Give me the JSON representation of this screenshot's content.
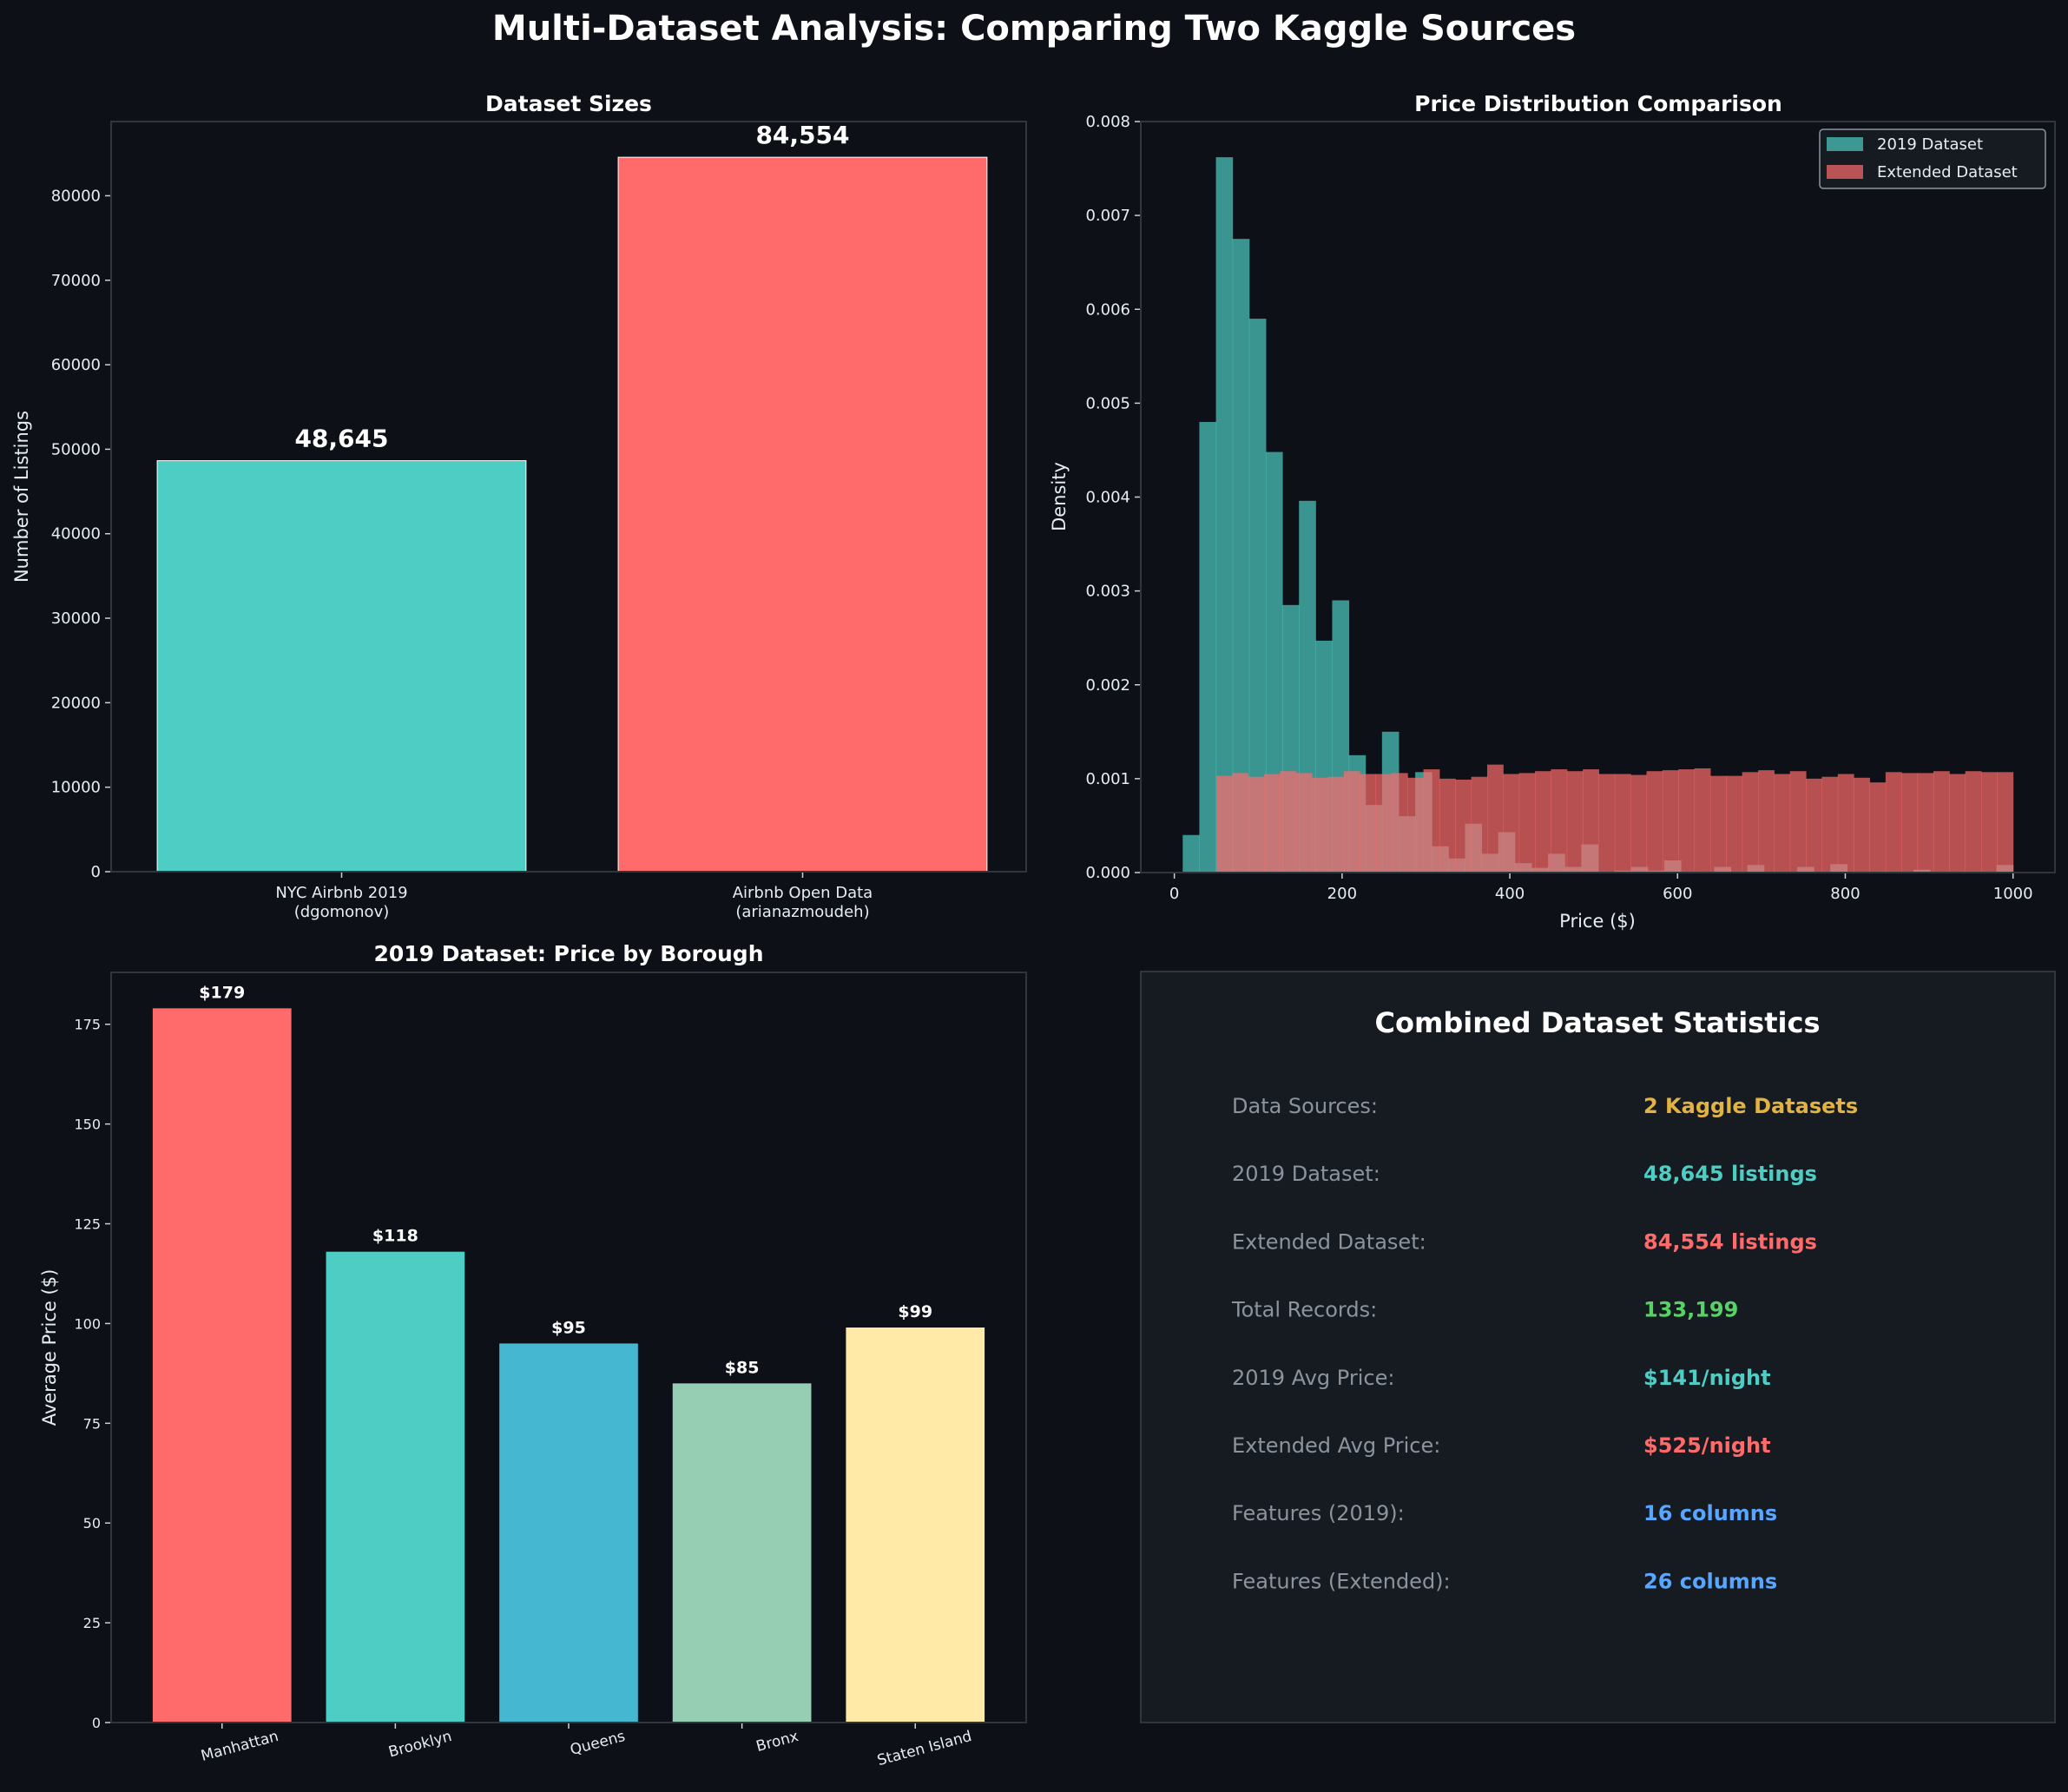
{
  "suptitle": "Multi-Dataset Analysis: Comparing Two Kaggle Sources",
  "colors": {
    "background": "#0d1117",
    "panel": "#161b22",
    "spine": "#30363d",
    "teal": "#4ecdc4",
    "red": "#ff6b6b",
    "blue": "#45b7d1",
    "green": "#96ceb4",
    "yellow": "#ffeaa7",
    "gold": "#e3b341",
    "bright_green": "#56d364",
    "light_blue": "#58a6ff",
    "label_gray": "#8b949e"
  },
  "chart_data": [
    {
      "type": "bar",
      "title": "Dataset Sizes",
      "ylabel": "Number of Listings",
      "categories": [
        [
          "NYC Airbnb 2019",
          "(dgomonov)"
        ],
        [
          "Airbnb Open Data",
          "(arianazmoudeh)"
        ]
      ],
      "values": [
        48645,
        84554
      ],
      "data_labels": [
        "48,645",
        "84,554"
      ],
      "bar_colors": [
        "#4ecdc4",
        "#ff6b6b"
      ],
      "ylim": [
        0,
        88782
      ],
      "yticks": [
        0,
        10000,
        20000,
        30000,
        40000,
        50000,
        60000,
        70000,
        80000
      ]
    },
    {
      "type": "histogram",
      "title": "Price Distribution Comparison",
      "xlabel": "Price ($)",
      "ylabel": "Density",
      "xlim": [
        -40,
        1050
      ],
      "ylim": [
        0,
        0.008
      ],
      "xticks": [
        0,
        200,
        400,
        600,
        800,
        1000
      ],
      "yticks": [
        "0.000",
        "0.001",
        "0.002",
        "0.003",
        "0.004",
        "0.005",
        "0.006",
        "0.007",
        "0.008"
      ],
      "legend": "top-right",
      "series": [
        {
          "name": "2019 Dataset",
          "color": "#4ecdc4",
          "bin_start": 10,
          "bin_end": 1000,
          "densities": [
            0.0004,
            0.0048,
            0.00762,
            0.00675,
            0.0059,
            0.00448,
            0.00285,
            0.00396,
            0.00247,
            0.0029,
            0.00125,
            0.00072,
            0.0015,
            0.0006,
            0.00107,
            0.00028,
            0.00015,
            0.00052,
            0.0002,
            0.00043,
            0.0001,
            5e-05,
            0.0002,
            6e-05,
            0.0003,
            1e-05,
            2e-05,
            6e-05,
            2e-05,
            0.00013,
            1e-05,
            0,
            6e-05,
            1e-05,
            8e-05,
            1e-05,
            0,
            6e-05,
            0,
            9e-05,
            0,
            0,
            1e-05,
            0,
            3e-05,
            0,
            0,
            1e-05,
            0,
            8e-05
          ]
        },
        {
          "name": "Extended Dataset",
          "color": "#ff6b6b",
          "bin_start": 50,
          "bin_end": 1000,
          "densities": [
            0.00103,
            0.00106,
            0.00102,
            0.00105,
            0.00108,
            0.00106,
            0.00101,
            0.00102,
            0.00108,
            0.00105,
            0.00105,
            0.00106,
            0.00101,
            0.0011,
            0.001,
            0.00099,
            0.00102,
            0.00115,
            0.00105,
            0.00106,
            0.00108,
            0.0011,
            0.00108,
            0.0011,
            0.00105,
            0.00105,
            0.00104,
            0.00108,
            0.00109,
            0.0011,
            0.00111,
            0.00103,
            0.00103,
            0.00107,
            0.00109,
            0.00105,
            0.00108,
            0.001,
            0.00102,
            0.00105,
            0.00101,
            0.00096,
            0.00107,
            0.00106,
            0.00106,
            0.00108,
            0.00105,
            0.00108,
            0.00107,
            0.00107
          ]
        }
      ]
    },
    {
      "type": "bar",
      "title": "2019 Dataset: Price by Borough",
      "ylabel": "Average Price ($)",
      "categories": [
        "Manhattan",
        "Brooklyn",
        "Queens",
        "Bronx",
        "Staten Island"
      ],
      "values": [
        179,
        118,
        95,
        85,
        99
      ],
      "data_labels": [
        "$179",
        "$118",
        "$95",
        "$85",
        "$99"
      ],
      "bar_colors": [
        "#ff6b6b",
        "#4ecdc4",
        "#45b7d1",
        "#96ceb4",
        "#ffeaa7"
      ],
      "ylim": [
        0,
        188
      ],
      "yticks": [
        0,
        25,
        50,
        75,
        100,
        125,
        150,
        175
      ]
    }
  ],
  "stats": {
    "title": "Combined Dataset Statistics",
    "rows": [
      {
        "label": "Data Sources:",
        "value": "2 Kaggle Datasets",
        "color": "#e3b341"
      },
      {
        "label": "2019 Dataset:",
        "value": "48,645 listings",
        "color": "#4ecdc4"
      },
      {
        "label": "Extended Dataset:",
        "value": "84,554 listings",
        "color": "#ff6b6b"
      },
      {
        "label": "Total Records:",
        "value": "133,199",
        "color": "#56d364"
      },
      {
        "label": "2019 Avg Price:",
        "value": "$141/night",
        "color": "#4ecdc4"
      },
      {
        "label": "Extended Avg Price:",
        "value": "$525/night",
        "color": "#ff6b6b"
      },
      {
        "label": "Features (2019):",
        "value": "16 columns",
        "color": "#58a6ff"
      },
      {
        "label": "Features (Extended):",
        "value": "26 columns",
        "color": "#58a6ff"
      }
    ]
  }
}
